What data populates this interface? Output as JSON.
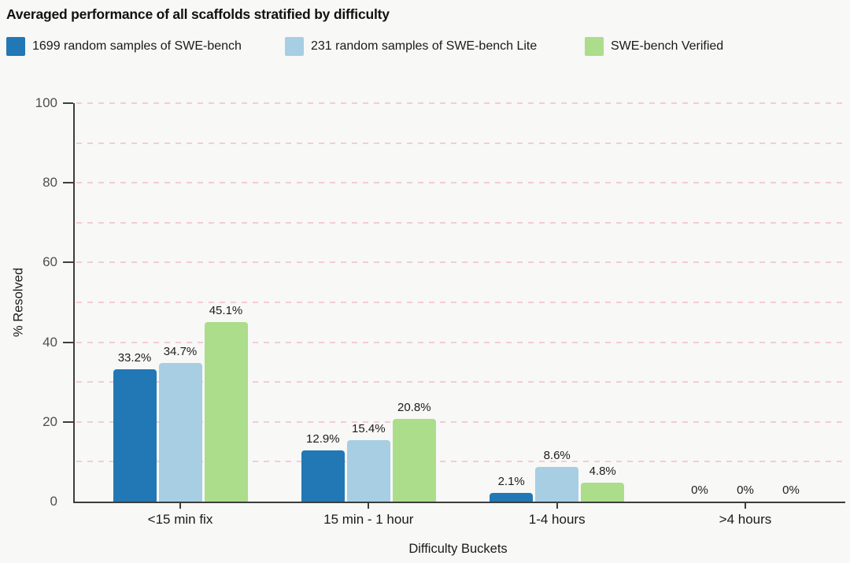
{
  "title": "Averaged performance of all scaffolds stratified by difficulty",
  "colors": {
    "background": "#f8f8f7",
    "axis": "#3d3d3d",
    "grid": "#f3cbd9",
    "tick_label": "#4f4f4f",
    "series_blue": "#2278b5",
    "series_light_blue": "#a7cee3",
    "series_green": "#abdd8b"
  },
  "chart_data": {
    "type": "bar",
    "title": "Averaged performance of all scaffolds stratified by difficulty",
    "categories": [
      "<15 min fix",
      "15 min - 1 hour",
      "1-4 hours",
      ">4 hours"
    ],
    "series": [
      {
        "name": "1699 random samples of SWE-bench",
        "color": "#2278b5",
        "values": [
          33.2,
          12.9,
          2.1,
          0
        ]
      },
      {
        "name": "231 random samples of SWE-bench Lite",
        "color": "#a7cee3",
        "values": [
          34.7,
          15.4,
          8.6,
          0
        ]
      },
      {
        "name": "SWE-bench Verified",
        "color": "#abdd8b",
        "values": [
          45.1,
          20.8,
          4.8,
          0
        ]
      }
    ],
    "value_labels": [
      [
        "33.2%",
        "12.9%",
        "2.1%",
        "0%"
      ],
      [
        "34.7%",
        "15.4%",
        "8.6%",
        "0%"
      ],
      [
        "45.1%",
        "20.8%",
        "4.8%",
        "0%"
      ]
    ],
    "xlabel": "Difficulty Buckets",
    "ylabel": "% Resolved",
    "ylim": [
      0,
      100
    ],
    "ytick_step": 20,
    "ytick_labels": [
      "0",
      "20",
      "40",
      "60",
      "80",
      "100"
    ],
    "grid_step": 10,
    "grid": true,
    "legend_position": "top-left"
  }
}
